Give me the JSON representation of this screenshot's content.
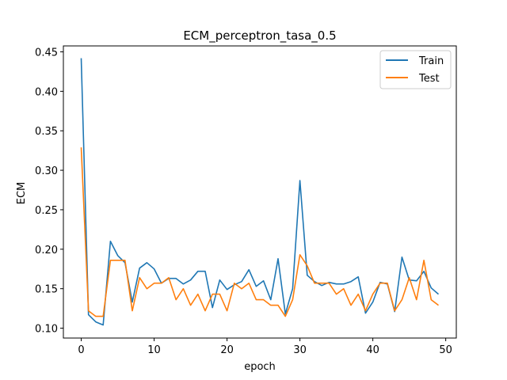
{
  "chart_data": {
    "type": "line",
    "title": "ECM_perceptron_tasa_0.5",
    "xlabel": "epoch",
    "ylabel": "ECM",
    "xlim": [
      -2.45,
      51.45
    ],
    "ylim": [
      0.0875,
      0.4575
    ],
    "xticks": [
      0,
      10,
      20,
      30,
      40,
      50
    ],
    "yticks": [
      0.1,
      0.15,
      0.2,
      0.25,
      0.3,
      0.35,
      0.4,
      0.45
    ],
    "ytick_labels": [
      "0.10",
      "0.15",
      "0.20",
      "0.25",
      "0.30",
      "0.35",
      "0.40",
      "0.45"
    ],
    "grid": false,
    "legend_position": "top-right",
    "x": [
      0,
      1,
      2,
      3,
      4,
      5,
      6,
      7,
      8,
      9,
      10,
      11,
      12,
      13,
      14,
      15,
      16,
      17,
      18,
      19,
      20,
      21,
      22,
      23,
      24,
      25,
      26,
      27,
      28,
      29,
      30,
      31,
      32,
      33,
      34,
      35,
      36,
      37,
      38,
      39,
      40,
      41,
      42,
      43,
      44,
      45,
      46,
      47,
      48,
      49
    ],
    "series": [
      {
        "name": "Train",
        "color": "#1f77b4",
        "values": [
          0.442,
          0.117,
          0.108,
          0.104,
          0.21,
          0.192,
          0.183,
          0.133,
          0.176,
          0.183,
          0.175,
          0.157,
          0.163,
          0.163,
          0.156,
          0.161,
          0.172,
          0.172,
          0.126,
          0.161,
          0.149,
          0.155,
          0.159,
          0.174,
          0.153,
          0.16,
          0.136,
          0.188,
          0.118,
          0.15,
          0.287,
          0.167,
          0.159,
          0.154,
          0.158,
          0.156,
          0.156,
          0.159,
          0.165,
          0.119,
          0.133,
          0.158,
          0.156,
          0.121,
          0.19,
          0.161,
          0.16,
          0.172,
          0.151,
          0.143
        ]
      },
      {
        "name": "Test",
        "color": "#ff7f0e",
        "values": [
          0.329,
          0.122,
          0.115,
          0.115,
          0.186,
          0.186,
          0.186,
          0.122,
          0.164,
          0.15,
          0.157,
          0.157,
          0.164,
          0.136,
          0.15,
          0.129,
          0.143,
          0.122,
          0.143,
          0.143,
          0.122,
          0.157,
          0.15,
          0.157,
          0.136,
          0.136,
          0.129,
          0.129,
          0.115,
          0.136,
          0.193,
          0.179,
          0.157,
          0.157,
          0.157,
          0.143,
          0.15,
          0.129,
          0.143,
          0.122,
          0.143,
          0.157,
          0.157,
          0.122,
          0.136,
          0.164,
          0.136,
          0.186,
          0.136,
          0.129
        ]
      }
    ]
  }
}
